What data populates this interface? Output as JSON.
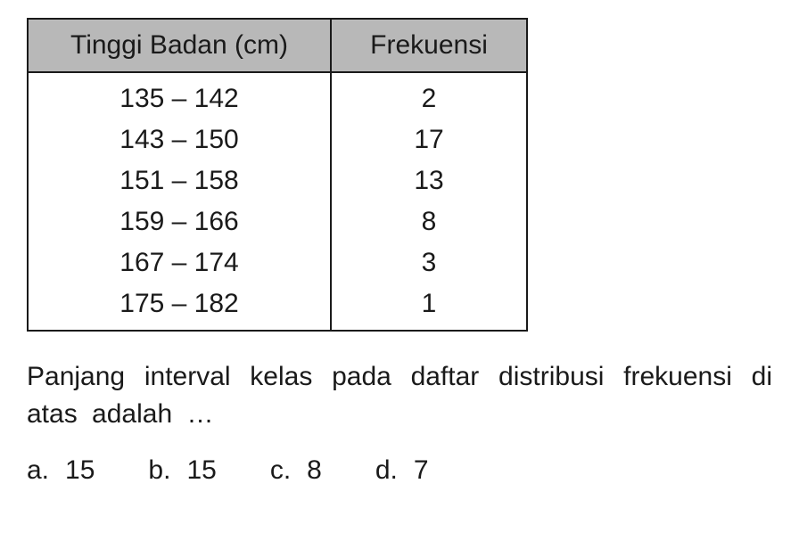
{
  "table": {
    "headers": {
      "col1": "Tinggi Badan (cm)",
      "col2": "Frekuensi"
    },
    "rows": [
      {
        "range": "135 – 142",
        "freq": "2"
      },
      {
        "range": "143 – 150",
        "freq": "17"
      },
      {
        "range": "151 – 158",
        "freq": "13"
      },
      {
        "range": "159 – 166",
        "freq": "8"
      },
      {
        "range": "167 – 174",
        "freq": "3"
      },
      {
        "range": "175 – 182",
        "freq": "1"
      }
    ],
    "header_bg_color": "#b8b8b8",
    "border_color": "#1a1a1a",
    "font_size": 30
  },
  "question": {
    "text": "Panjang interval kelas pada daftar distribusi frekuensi di atas adalah …",
    "font_size": 30
  },
  "options": {
    "a": {
      "label": "a.",
      "value": "15"
    },
    "b": {
      "label": "b.",
      "value": "15"
    },
    "c": {
      "label": "c.",
      "value": "8"
    },
    "d": {
      "label": "d.",
      "value": "7"
    }
  },
  "colors": {
    "background": "#ffffff",
    "text": "#1a1a1a"
  }
}
